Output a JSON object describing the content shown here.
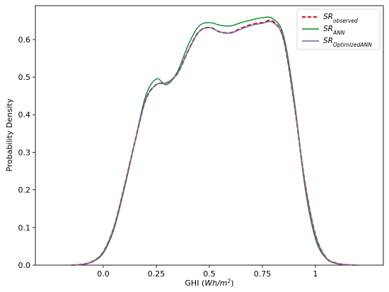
{
  "chart_data": {
    "type": "line",
    "title": "",
    "xlabel_prefix": "GHI (",
    "xlabel_math": "Wh/m",
    "xlabel_sup": "2",
    "xlabel_suffix": ")",
    "ylabel": "Probability Density",
    "xlim": [
      -0.32,
      1.32
    ],
    "ylim": [
      0.0,
      0.69
    ],
    "xticks": [
      0.0,
      0.25,
      0.5,
      0.75,
      1.0
    ],
    "xtick_labels": [
      "0.0",
      "0.25",
      "0.5",
      "0.75",
      "1"
    ],
    "yticks": [
      0.0,
      0.1,
      0.2,
      0.3,
      0.4,
      0.5,
      0.6
    ],
    "ytick_labels": [
      "0.0",
      "0.1",
      "0.2",
      "0.3",
      "0.4",
      "0.5",
      "0.6"
    ],
    "grid": false,
    "legend_position": "top-right",
    "x": [
      -0.15,
      -0.1,
      -0.05,
      0.0,
      0.05,
      0.1,
      0.15,
      0.2,
      0.25,
      0.3,
      0.35,
      0.4,
      0.45,
      0.5,
      0.55,
      0.6,
      0.65,
      0.7,
      0.75,
      0.8,
      0.85,
      0.9,
      0.95,
      1.0,
      1.05,
      1.1,
      1.15,
      1.2
    ],
    "series": [
      {
        "name_base": "SR",
        "name_sub": "observed",
        "color": "#e8141c",
        "dash": "dashed",
        "values": [
          0.0,
          0.002,
          0.01,
          0.035,
          0.1,
          0.21,
          0.33,
          0.44,
          0.48,
          0.485,
          0.51,
          0.57,
          0.62,
          0.632,
          0.62,
          0.618,
          0.63,
          0.64,
          0.645,
          0.648,
          0.6,
          0.43,
          0.22,
          0.08,
          0.02,
          0.005,
          0.001,
          0.0
        ]
      },
      {
        "name_base": "SR",
        "name_sub": "ANN",
        "color": "#0a8a2a",
        "dash": "solid",
        "values": [
          0.0,
          0.002,
          0.009,
          0.032,
          0.095,
          0.205,
          0.33,
          0.45,
          0.495,
          0.48,
          0.515,
          0.585,
          0.635,
          0.645,
          0.638,
          0.636,
          0.645,
          0.652,
          0.658,
          0.655,
          0.61,
          0.44,
          0.21,
          0.07,
          0.018,
          0.004,
          0.001,
          0.0
        ]
      },
      {
        "name_base": "SR",
        "name_sub": "OptimizedANN",
        "color": "#5e6aa8",
        "dash": "solid",
        "values": [
          0.0,
          0.002,
          0.01,
          0.035,
          0.1,
          0.21,
          0.33,
          0.44,
          0.48,
          0.485,
          0.51,
          0.57,
          0.62,
          0.632,
          0.62,
          0.617,
          0.628,
          0.638,
          0.643,
          0.645,
          0.6,
          0.43,
          0.22,
          0.08,
          0.02,
          0.005,
          0.001,
          0.0
        ]
      }
    ]
  }
}
